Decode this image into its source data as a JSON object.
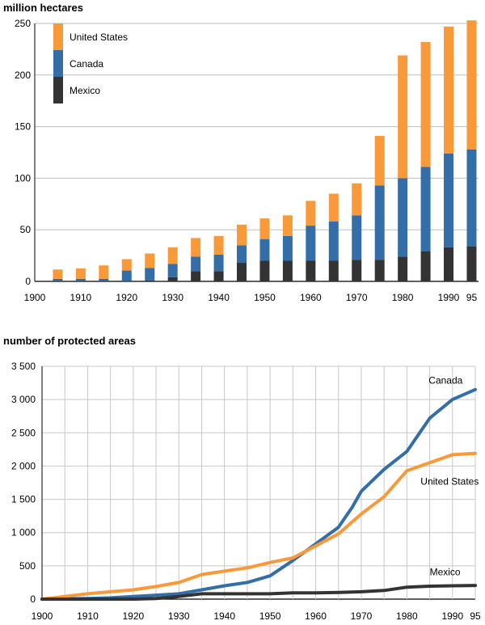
{
  "chart_data": [
    {
      "type": "bar",
      "stacked": true,
      "ylabel": "million hectares",
      "ylim": [
        0,
        250
      ],
      "yticks": [
        0,
        50,
        100,
        150,
        200,
        250
      ],
      "xticks": [
        "1900",
        "1910",
        "1920",
        "1930",
        "1940",
        "1950",
        "1960",
        "1970",
        "1980",
        "1990",
        "95"
      ],
      "grid": "horizontal",
      "legend_position": "top-left",
      "categories": [
        1905,
        1910,
        1915,
        1920,
        1925,
        1930,
        1935,
        1940,
        1945,
        1950,
        1955,
        1960,
        1965,
        1970,
        1975,
        1980,
        1985,
        1990,
        1995
      ],
      "series": [
        {
          "name": "Mexico",
          "color": "#333333",
          "values": [
            0.5,
            0.5,
            0.5,
            0.5,
            1,
            4,
            10,
            10,
            18,
            20,
            20,
            20,
            20,
            21,
            21,
            24,
            29,
            33,
            34
          ]
        },
        {
          "name": "Canada",
          "color": "#336ea8",
          "values": [
            2,
            2,
            2,
            10,
            12,
            13,
            14,
            16,
            17,
            21,
            24,
            34,
            38,
            43,
            72,
            76,
            82,
            91,
            94
          ]
        },
        {
          "name": "United States",
          "color": "#f9993a",
          "values": [
            9,
            10,
            13,
            11,
            14,
            16,
            18,
            18,
            20,
            20,
            20,
            24,
            27,
            31,
            48,
            119,
            121,
            123,
            125
          ]
        }
      ],
      "legend": [
        "United States",
        "Canada",
        "Mexico"
      ]
    },
    {
      "type": "line",
      "ylabel": "number of protected areas",
      "ylim": [
        0,
        3500
      ],
      "yticks": [
        "0",
        "500",
        "1 000",
        "1 500",
        "2 000",
        "2 500",
        "3 000",
        "3 500"
      ],
      "xticks": [
        "1900",
        "1910",
        "1920",
        "1930",
        "1940",
        "1950",
        "1960",
        "1970",
        "1980",
        "1990",
        "95"
      ],
      "grid": "both",
      "series": [
        {
          "name": "Canada",
          "color": "#336ea8",
          "x": [
            1900,
            1905,
            1910,
            1915,
            1920,
            1925,
            1930,
            1935,
            1940,
            1945,
            1950,
            1955,
            1960,
            1965,
            1968,
            1970,
            1975,
            1980,
            1985,
            1990,
            1995
          ],
          "values": [
            0,
            5,
            10,
            20,
            40,
            60,
            80,
            140,
            200,
            250,
            350,
            580,
            830,
            1080,
            1380,
            1620,
            1950,
            2220,
            2720,
            3000,
            3150
          ]
        },
        {
          "name": "United States",
          "color": "#f9993a",
          "x": [
            1900,
            1905,
            1910,
            1915,
            1920,
            1925,
            1930,
            1935,
            1940,
            1945,
            1950,
            1955,
            1960,
            1965,
            1970,
            1975,
            1980,
            1985,
            1990,
            1995
          ],
          "values": [
            0,
            40,
            80,
            110,
            140,
            190,
            250,
            370,
            420,
            470,
            550,
            620,
            800,
            980,
            1280,
            1540,
            1930,
            2050,
            2170,
            2190
          ]
        },
        {
          "name": "Mexico",
          "color": "#333333",
          "x": [
            1900,
            1905,
            1910,
            1915,
            1920,
            1925,
            1930,
            1935,
            1940,
            1945,
            1950,
            1955,
            1960,
            1965,
            1970,
            1975,
            1980,
            1985,
            1990,
            1995
          ],
          "values": [
            0,
            0,
            0,
            0,
            0,
            10,
            40,
            80,
            80,
            80,
            80,
            95,
            95,
            100,
            110,
            130,
            180,
            195,
            200,
            205
          ]
        }
      ]
    }
  ]
}
